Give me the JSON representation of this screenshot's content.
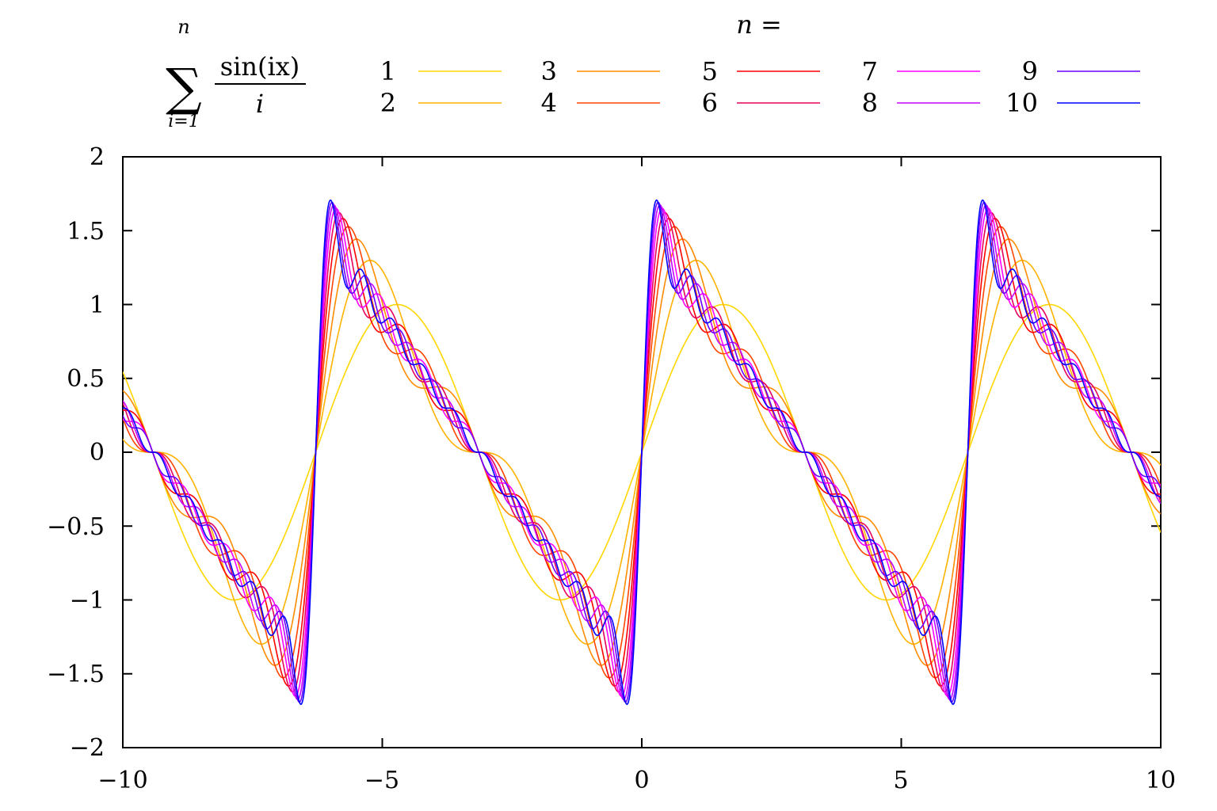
{
  "chart_data": {
    "type": "line",
    "title": "",
    "xlabel": "",
    "ylabel": "",
    "xlim": [
      -10,
      10
    ],
    "ylim": [
      -2,
      2
    ],
    "grid": false,
    "legend_placement": "top",
    "x_ticks": [
      "−10",
      "−5",
      "0",
      "5",
      "10"
    ],
    "y_ticks": [
      "2",
      "1.5",
      "1",
      "0.5",
      "0",
      "−0.5",
      "−1",
      "−1.5",
      "−2"
    ],
    "x_tick_values": [
      -10,
      -5,
      0,
      5,
      10
    ],
    "y_tick_values": [
      2,
      1.5,
      1,
      0.5,
      0,
      -0.5,
      -1,
      -1.5,
      -2
    ],
    "function_label": {
      "sum_symbol": "∑",
      "upper_limit": "n",
      "lower_limit": "i=1",
      "numerator": "sin(ix)",
      "denominator": "i"
    },
    "legend_title": "n =",
    "series_expression": "sum_{i=1}^{n} sin(i x)/i",
    "series": [
      {
        "name": "1",
        "n": 1,
        "color": "#ffd700"
      },
      {
        "name": "2",
        "n": 2,
        "color": "#ffb300"
      },
      {
        "name": "3",
        "n": 3,
        "color": "#ff8c00"
      },
      {
        "name": "4",
        "n": 4,
        "color": "#ff4500"
      },
      {
        "name": "5",
        "n": 5,
        "color": "#ff0000"
      },
      {
        "name": "6",
        "n": 6,
        "color": "#e6005c"
      },
      {
        "name": "7",
        "n": 7,
        "color": "#ff00ff"
      },
      {
        "name": "8",
        "n": 8,
        "color": "#c800ff"
      },
      {
        "name": "9",
        "n": 9,
        "color": "#6a00ff"
      },
      {
        "name": "10",
        "n": 10,
        "color": "#0000ff"
      }
    ]
  }
}
